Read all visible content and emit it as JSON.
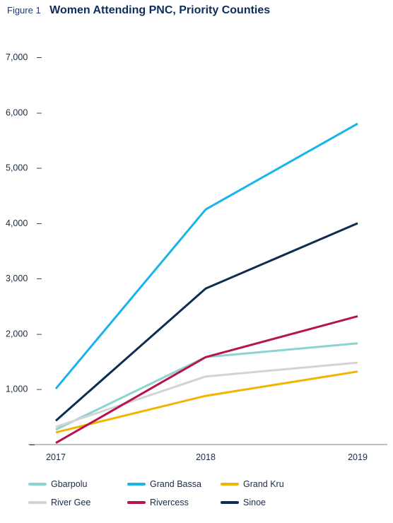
{
  "figure": {
    "label": "Figure 1",
    "title": "Women Attending PNC, Priority Counties"
  },
  "chart_data": {
    "type": "line",
    "title": "Women Attending PNC, Priority Counties",
    "x": [
      "2017",
      "2018",
      "2019"
    ],
    "y_ticks": [
      "–",
      "1,000",
      "2,000",
      "3,000",
      "4,000",
      "5,000",
      "6,000",
      "7,000"
    ],
    "ylim": [
      0,
      7000
    ],
    "grid": false,
    "legend_position": "bottom",
    "series": [
      {
        "name": "Gbarpolu",
        "color": "#8fd3d0",
        "values": [
          270,
          1580,
          1830
        ]
      },
      {
        "name": "Grand Bassa",
        "color": "#19b4ea",
        "values": [
          1010,
          4250,
          5800
        ]
      },
      {
        "name": "Grand Kru",
        "color": "#f2b400",
        "values": [
          220,
          880,
          1320
        ]
      },
      {
        "name": "River Gee",
        "color": "#d3d3d3",
        "values": [
          320,
          1230,
          1480
        ]
      },
      {
        "name": "Rivercess",
        "color": "#b5144f",
        "values": [
          30,
          1580,
          2320
        ]
      },
      {
        "name": "Sinoe",
        "color": "#0f2d52",
        "values": [
          430,
          2820,
          4000
        ]
      }
    ]
  }
}
